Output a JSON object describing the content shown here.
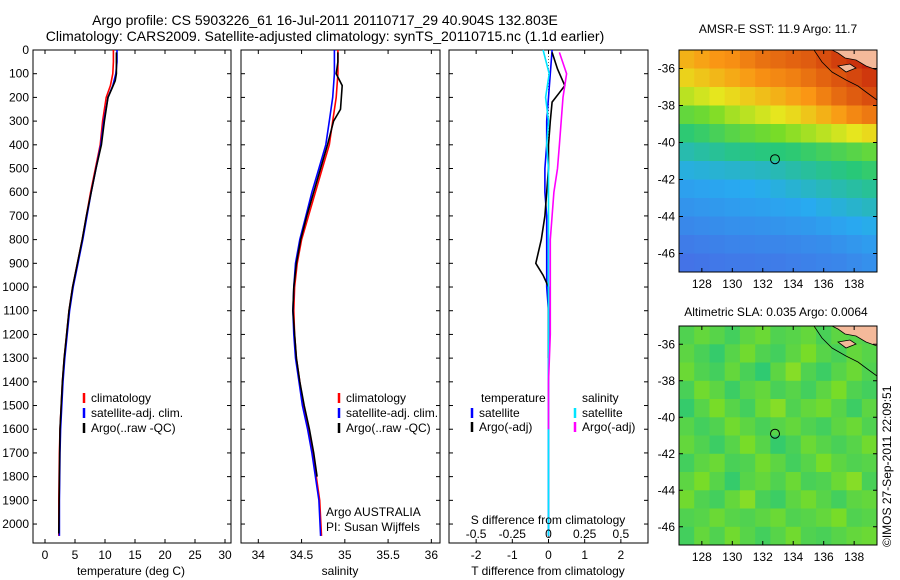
{
  "header": {
    "line1": "Argo profile: CS 5903226_61 16-Jul-2011 20110717_29 40.904S 132.803E",
    "line2": "Climatology: CARS2009. Satellite-adjusted climatology: synTS_20110715.nc (1.1d earlier)"
  },
  "depth_ticks": [
    "0",
    "100",
    "200",
    "300",
    "400",
    "500",
    "600",
    "700",
    "800",
    "900",
    "1000",
    "1100",
    "1200",
    "1300",
    "1400",
    "1500",
    "1600",
    "1700",
    "1800",
    "1900",
    "2000"
  ],
  "colors": {
    "climatology": "#ff0000",
    "satellite": "#0000ff",
    "argo": "#000000",
    "sat_sal": "#00e5ff",
    "argo_sal": "#ff00ff"
  },
  "chart_data": [
    {
      "id": "temperature",
      "type": "line",
      "xlabel": "temperature (deg C)",
      "ylabel": "",
      "xlim": [
        -2,
        31
      ],
      "ylim": [
        2080,
        0
      ],
      "xticks": [
        "0",
        "5",
        "10",
        "15",
        "20",
        "25",
        "30"
      ],
      "xtick_values": [
        0,
        5,
        10,
        15,
        20,
        25,
        30
      ],
      "legend": [
        "climatology",
        "satellite-adj. clim.",
        "Argo(..raw -QC)"
      ],
      "series": [
        {
          "name": "climatology",
          "color": "#ff0000",
          "x": [
            11.4,
            11.4,
            11.3,
            10.9,
            10.2,
            9.6,
            9.2,
            8.4,
            7.6,
            6.9,
            6.2,
            5.4,
            4.6,
            4.0,
            3.6,
            3.2,
            2.9,
            2.7,
            2.5,
            2.4,
            2.3,
            2.3
          ],
          "y": [
            0,
            50,
            100,
            150,
            200,
            300,
            400,
            500,
            600,
            700,
            800,
            900,
            1000,
            1100,
            1200,
            1300,
            1400,
            1500,
            1600,
            1700,
            1900,
            2050
          ]
        },
        {
          "name": "satellite-adj. clim.",
          "color": "#0000ff",
          "x": [
            12.0,
            12.0,
            11.8,
            11.3,
            10.5,
            9.8,
            9.3,
            8.5,
            7.7,
            7.0,
            6.3,
            5.5,
            4.7,
            4.1,
            3.7,
            3.3,
            3.0,
            2.8,
            2.6,
            2.5,
            2.4,
            2.4
          ],
          "y": [
            0,
            50,
            100,
            150,
            200,
            300,
            400,
            500,
            600,
            700,
            800,
            900,
            1000,
            1100,
            1200,
            1300,
            1400,
            1500,
            1600,
            1700,
            1900,
            2050
          ]
        },
        {
          "name": "Argo(..raw -QC)",
          "color": "#000000",
          "x": [
            11.9,
            11.9,
            11.9,
            11.7,
            11.2,
            10.5,
            9.9,
            9.4,
            8.5,
            7.7,
            6.9,
            6.2,
            5.4,
            4.6,
            4.0,
            3.6,
            3.2,
            2.9,
            2.7,
            2.5,
            2.4,
            2.3
          ],
          "y": [
            10,
            50,
            100,
            130,
            160,
            200,
            300,
            400,
            500,
            600,
            700,
            800,
            900,
            1000,
            1100,
            1200,
            1300,
            1400,
            1500,
            1600,
            1800,
            2040
          ]
        }
      ]
    },
    {
      "id": "salinity",
      "type": "line",
      "xlabel": "salinity",
      "ylabel": "",
      "xlim": [
        33.8,
        36.1
      ],
      "ylim": [
        2080,
        0
      ],
      "xticks": [
        "34",
        "34.5",
        "35",
        "35.5",
        "36"
      ],
      "xtick_values": [
        34,
        34.5,
        35,
        35.5,
        36
      ],
      "legend": [
        "climatology",
        "satellite-adj. clim.",
        "Argo(..raw -QC)"
      ],
      "series": [
        {
          "name": "climatology",
          "color": "#ff0000",
          "x": [
            34.92,
            34.92,
            34.92,
            34.9,
            34.86,
            34.82,
            34.74,
            34.66,
            34.58,
            34.5,
            34.45,
            34.42,
            34.41,
            34.42,
            34.44,
            34.48,
            34.52,
            34.58,
            34.63,
            34.67,
            34.71,
            34.73
          ],
          "y": [
            0,
            50,
            100,
            200,
            300,
            400,
            500,
            600,
            700,
            800,
            900,
            1000,
            1100,
            1200,
            1300,
            1400,
            1500,
            1600,
            1700,
            1800,
            1900,
            2050
          ]
        },
        {
          "name": "satellite-adj. clim.",
          "color": "#0000ff",
          "x": [
            34.88,
            34.88,
            34.88,
            34.86,
            34.82,
            34.78,
            34.7,
            34.62,
            34.55,
            34.48,
            34.43,
            34.41,
            34.4,
            34.41,
            34.43,
            34.47,
            34.51,
            34.57,
            34.62,
            34.66,
            34.7,
            34.72
          ],
          "y": [
            0,
            50,
            100,
            200,
            300,
            400,
            500,
            600,
            700,
            800,
            900,
            1000,
            1100,
            1200,
            1300,
            1400,
            1500,
            1600,
            1700,
            1800,
            1900,
            2050
          ]
        },
        {
          "name": "Argo(..raw -QC)",
          "color": "#000000",
          "x": [
            34.92,
            34.92,
            34.9,
            34.97,
            34.95,
            34.87,
            34.8,
            34.72,
            34.64,
            34.56,
            34.49,
            34.44,
            34.41,
            34.4,
            34.42,
            34.44,
            34.48,
            34.53,
            34.59,
            34.64,
            34.68
          ],
          "y": [
            10,
            50,
            100,
            150,
            250,
            300,
            400,
            500,
            600,
            700,
            800,
            900,
            1000,
            1100,
            1200,
            1300,
            1400,
            1500,
            1600,
            1700,
            1800
          ]
        }
      ]
    },
    {
      "id": "differences",
      "type": "line",
      "xlabel": "T difference from climatology",
      "xlabel_top": "S difference from climatology",
      "ylabel": "",
      "xlim": [
        -2.75,
        2.75
      ],
      "ylim": [
        2080,
        0
      ],
      "xticks": [
        "-2",
        "-1",
        "0",
        "1",
        "2"
      ],
      "xtick_values": [
        -2,
        -1,
        0,
        1,
        2
      ],
      "xticks_top": [
        "-0.5",
        "-0.25",
        "0",
        "0.25",
        "0.5"
      ],
      "legend_groups": [
        "temperature",
        "salinity"
      ],
      "legend": [
        "satellite",
        "Argo(-adj)",
        "satellite",
        "Argo(-adj)"
      ],
      "series": [
        {
          "name": "satellite",
          "group": "temperature",
          "color": "#0000ff",
          "x": [
            0.1,
            0.05,
            0.0,
            -0.05,
            -0.05,
            -0.1,
            -0.1,
            -0.05,
            -0.05,
            -0.05,
            -0.05,
            0,
            0,
            0,
            0,
            0,
            0,
            0,
            0
          ],
          "y": [
            0,
            100,
            200,
            300,
            400,
            500,
            600,
            700,
            800,
            900,
            1000,
            1100,
            1200,
            1300,
            1400,
            1500,
            1600,
            1800,
            2050
          ]
        },
        {
          "name": "Argo(-adj)",
          "group": "temperature",
          "color": "#000000",
          "x": [
            0.1,
            0.25,
            0.45,
            0.3,
            0.1,
            0.05,
            0.0,
            0.0,
            -0.05,
            -0.1,
            -0.2,
            -0.35,
            -0.15,
            0.0,
            0.0,
            0.0
          ],
          "y": [
            10,
            80,
            150,
            180,
            220,
            300,
            400,
            500,
            600,
            700,
            800,
            900,
            950,
            1000,
            1100,
            1300
          ]
        },
        {
          "name": "satellite",
          "group": "salinity",
          "color": "#00e5ff",
          "x": [
            -0.15,
            0.02,
            -0.08,
            0.0,
            -0.05,
            0.0,
            0.0,
            0.0,
            0.0,
            0.0,
            0.0,
            0.0,
            0.0,
            0.0,
            0.0
          ],
          "y": [
            0,
            100,
            200,
            300,
            400,
            500,
            600,
            700,
            800,
            900,
            1000,
            1200,
            1400,
            1600,
            2050
          ]
        },
        {
          "name": "Argo(-adj)",
          "group": "salinity",
          "color": "#ff00ff",
          "x": [
            0.3,
            0.5,
            0.4,
            0.35,
            0.3,
            0.25,
            0.15,
            0.1,
            0.05,
            0.05,
            0.05,
            0.0,
            0.0
          ],
          "y": [
            10,
            100,
            200,
            300,
            400,
            500,
            600,
            700,
            800,
            1000,
            1200,
            1400,
            1600
          ]
        }
      ],
      "notes": [
        "Argo AUSTRALIA",
        "PI: Susan Wijffels"
      ]
    },
    {
      "id": "sst_map",
      "type": "heatmap",
      "title": "AMSR-E SST: 11.9  Argo: 11.7",
      "xlim": [
        126.5,
        139.5
      ],
      "ylim": [
        -47,
        -35
      ],
      "xticks": [
        "128",
        "130",
        "132",
        "134",
        "136",
        "138"
      ],
      "xtick_values": [
        128,
        130,
        132,
        134,
        136,
        138
      ],
      "yticks": [
        "-36",
        "-38",
        "-40",
        "-42",
        "-44",
        "-46"
      ],
      "ytick_values": [
        -36,
        -38,
        -40,
        -42,
        -44,
        -46
      ],
      "rows_lat": [
        -35.5,
        -36.5,
        -37.5,
        -38.5,
        -39.5,
        -40.5,
        -41.5,
        -42.5,
        -43.5,
        -44.5,
        -45.5,
        -46.5
      ],
      "cols_lon": [
        127,
        128,
        129,
        130,
        131,
        132,
        133,
        134,
        135,
        136,
        137,
        138,
        139
      ],
      "values": [
        [
          15.8,
          16.0,
          16.2,
          16.3,
          16.5,
          16.7,
          16.8,
          16.9,
          17.0,
          17.2,
          17.4,
          17.6,
          17.8
        ],
        [
          15.3,
          15.5,
          15.7,
          15.9,
          16.1,
          16.3,
          16.4,
          16.5,
          16.7,
          16.9,
          17.1,
          17.3,
          17.5
        ],
        [
          14.6,
          14.8,
          15.0,
          15.2,
          15.4,
          15.6,
          15.8,
          16.0,
          16.2,
          16.5,
          16.8,
          17.0,
          17.2
        ],
        [
          13.6,
          13.8,
          14.1,
          14.4,
          14.6,
          14.8,
          15.0,
          15.2,
          15.5,
          15.8,
          16.1,
          16.4,
          16.6
        ],
        [
          12.6,
          12.8,
          13.1,
          13.4,
          13.6,
          13.8,
          14.0,
          14.2,
          14.4,
          14.6,
          14.8,
          15.0,
          15.2
        ],
        [
          11.6,
          11.8,
          12.0,
          12.2,
          12.3,
          12.4,
          12.5,
          12.6,
          12.8,
          13.0,
          13.2,
          13.4,
          13.6
        ],
        [
          10.8,
          10.9,
          11.0,
          11.1,
          11.2,
          11.3,
          11.5,
          11.7,
          11.9,
          12.1,
          12.3,
          12.5,
          12.7
        ],
        [
          10.1,
          10.2,
          10.3,
          10.4,
          10.5,
          10.6,
          10.8,
          11.0,
          11.2,
          11.4,
          11.6,
          11.8,
          12.0
        ],
        [
          9.6,
          9.7,
          9.8,
          9.9,
          10.0,
          10.1,
          10.2,
          10.3,
          10.5,
          10.7,
          10.9,
          11.1,
          11.3
        ],
        [
          9.1,
          9.2,
          9.3,
          9.4,
          9.4,
          9.5,
          9.6,
          9.7,
          9.8,
          10.0,
          10.2,
          10.4,
          10.6
        ],
        [
          8.6,
          8.7,
          8.8,
          8.9,
          8.9,
          9.0,
          9.0,
          9.1,
          9.2,
          9.3,
          9.5,
          9.7,
          9.9
        ],
        [
          8.2,
          8.3,
          8.4,
          8.5,
          8.5,
          8.6,
          8.6,
          8.7,
          8.8,
          8.9,
          9.0,
          9.2,
          9.4
        ]
      ],
      "color_range": [
        8,
        18
      ],
      "float_position": {
        "lon": 132.803,
        "lat": -40.904
      }
    },
    {
      "id": "sla_map",
      "type": "heatmap",
      "title": "Altimetric SLA: 0.035  Argo: 0.0064",
      "xlim": [
        126.5,
        139.5
      ],
      "ylim": [
        -47,
        -35
      ],
      "xticks": [
        "128",
        "130",
        "132",
        "134",
        "136",
        "138"
      ],
      "xtick_values": [
        128,
        130,
        132,
        134,
        136,
        138
      ],
      "yticks": [
        "-36",
        "-38",
        "-40",
        "-42",
        "-44",
        "-46"
      ],
      "ytick_values": [
        -36,
        -38,
        -40,
        -42,
        -44,
        -46
      ],
      "rows_lat": [
        -35.5,
        -36.5,
        -37.5,
        -38.5,
        -39.5,
        -40.5,
        -41.5,
        -42.5,
        -43.5,
        -44.5,
        -45.5,
        -46.5
      ],
      "cols_lon": [
        127,
        128,
        129,
        130,
        131,
        132,
        133,
        134,
        135,
        136,
        137,
        138,
        139
      ],
      "values": [
        [
          0.02,
          0.05,
          0.03,
          0.0,
          0.04,
          0.06,
          0.02,
          0.03,
          0.05,
          0.01,
          0.04,
          0.03,
          0.02
        ],
        [
          0.04,
          0.01,
          -0.02,
          0.03,
          0.07,
          0.02,
          0.0,
          0.04,
          0.08,
          0.03,
          0.01,
          0.05,
          0.03
        ],
        [
          0.06,
          0.02,
          0.0,
          0.05,
          0.01,
          -0.03,
          0.04,
          0.09,
          0.02,
          -0.01,
          0.03,
          0.06,
          0.02
        ],
        [
          0.01,
          0.07,
          0.04,
          -0.01,
          0.03,
          0.05,
          0.01,
          0.03,
          0.0,
          0.04,
          0.08,
          0.02,
          0.0
        ],
        [
          -0.02,
          0.03,
          0.08,
          0.03,
          0.0,
          0.06,
          0.09,
          0.02,
          0.05,
          0.07,
          0.03,
          -0.01,
          0.04
        ],
        [
          0.03,
          0.0,
          0.02,
          0.07,
          0.04,
          0.01,
          0.03,
          0.05,
          0.02,
          0.0,
          0.04,
          0.06,
          0.02
        ],
        [
          0.05,
          0.02,
          -0.01,
          0.03,
          0.08,
          0.03,
          -0.02,
          0.01,
          0.06,
          0.03,
          0.01,
          0.03,
          0.07
        ],
        [
          0.0,
          0.04,
          0.06,
          0.01,
          0.02,
          0.07,
          0.04,
          0.0,
          0.03,
          0.08,
          0.04,
          0.02,
          0.03
        ],
        [
          0.04,
          0.08,
          0.03,
          -0.02,
          0.03,
          0.05,
          0.02,
          0.06,
          0.01,
          0.02,
          0.06,
          0.09,
          0.01
        ],
        [
          0.07,
          0.02,
          0.0,
          0.05,
          0.09,
          0.01,
          -0.01,
          0.04,
          0.07,
          0.03,
          0.0,
          0.04,
          0.05
        ],
        [
          0.02,
          0.03,
          0.06,
          0.03,
          0.02,
          0.04,
          0.06,
          0.02,
          0.03,
          0.05,
          0.08,
          0.02,
          0.03
        ],
        [
          0.0,
          0.05,
          0.02,
          0.07,
          0.03,
          0.0,
          0.03,
          0.07,
          0.02,
          0.01,
          0.03,
          0.05,
          0.06
        ]
      ],
      "color_range": [
        -0.4,
        0.4
      ],
      "float_position": {
        "lon": 132.803,
        "lat": -40.904
      }
    }
  ],
  "footer": {
    "imos_stamp": "©IMOS 27-Sep-2011 22:09:51"
  }
}
